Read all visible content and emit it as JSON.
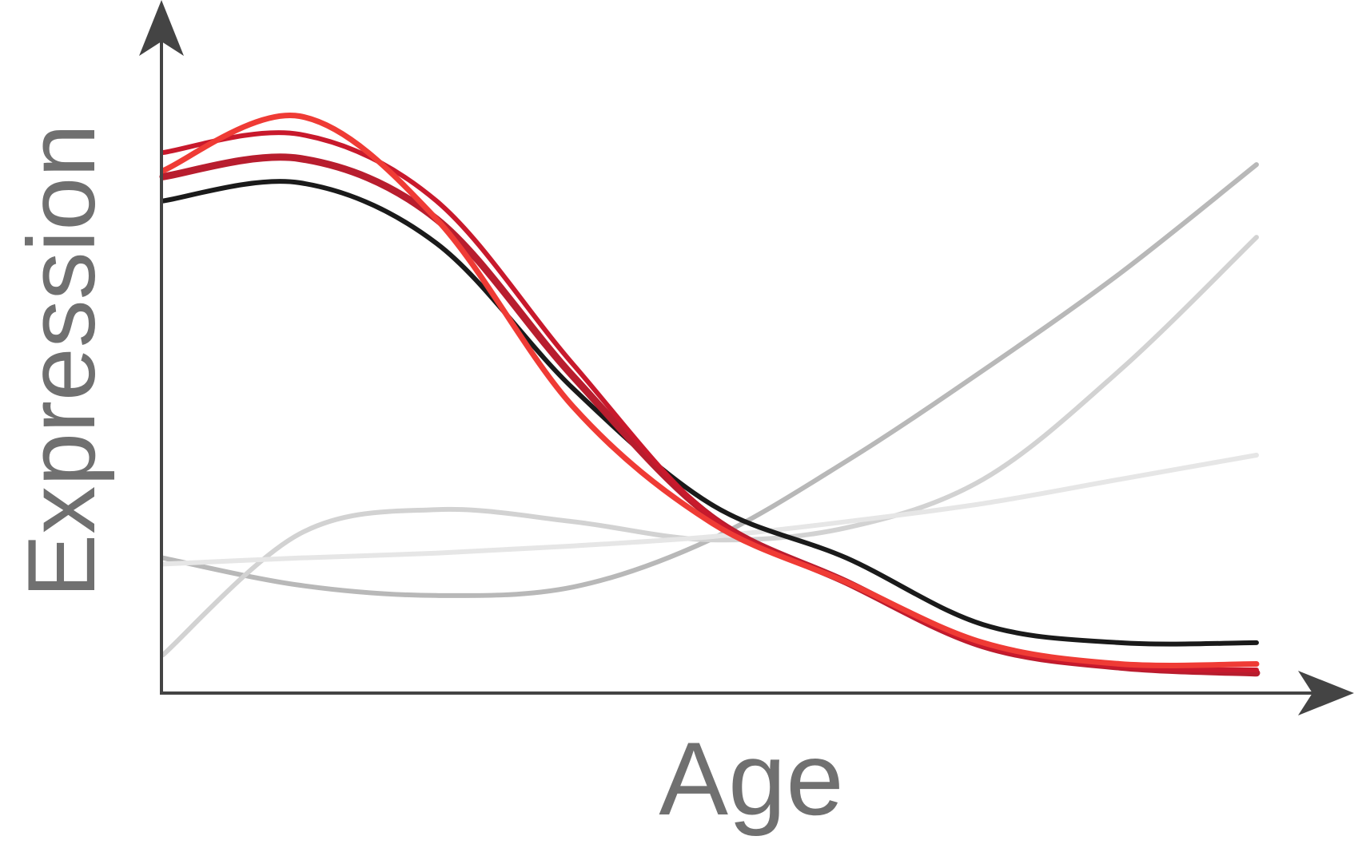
{
  "chart_data": {
    "type": "line",
    "title": "",
    "xlabel": "Age",
    "ylabel": "Expression",
    "xlim": [
      0,
      100
    ],
    "ylim": [
      0,
      100
    ],
    "grid": false,
    "legend": "none",
    "series": [
      {
        "color": "#b8b8b8",
        "x": [
          0,
          12.5,
          25,
          37.5,
          50,
          62.5,
          75,
          87.5,
          100
        ],
        "values": [
          21,
          16.5,
          14.8,
          16.2,
          24,
          37,
          52,
          68,
          86
        ]
      },
      {
        "color": "#d2d2d2",
        "x": [
          0,
          12.5,
          25,
          37.5,
          50,
          62.5,
          75,
          87.5,
          100
        ],
        "values": [
          5,
          25,
          29,
          27,
          24,
          26,
          34,
          52,
          74
        ]
      },
      {
        "color": "#e6e6e6",
        "x": [
          0,
          12.5,
          25,
          37.5,
          50,
          62.5,
          75,
          87.5,
          100
        ],
        "values": [
          20,
          21,
          21.8,
          23,
          24.5,
          27,
          30,
          34,
          38
        ]
      },
      {
        "color": "#1a1a1a",
        "x": [
          0,
          12.5,
          25,
          37.5,
          50,
          62.5,
          75,
          87.5,
          100
        ],
        "values": [
          80,
          83,
          73,
          49,
          30,
          21,
          10,
          7,
          7
        ]
      },
      {
        "color": "#b81d2e",
        "x": [
          0,
          12.5,
          25,
          37.5,
          50,
          62.5,
          75,
          87.5,
          100
        ],
        "values": [
          84,
          87,
          77,
          51,
          28,
          17,
          6.5,
          3,
          2
        ]
      },
      {
        "color": "#c8192c",
        "x": [
          0,
          12.5,
          25,
          37.5,
          50,
          62.5,
          75,
          87.5,
          100
        ],
        "values": [
          88,
          91,
          80,
          53,
          28,
          17,
          6.5,
          3,
          2.5
        ]
      },
      {
        "color": "#ef3b35",
        "x": [
          0,
          12.5,
          25,
          37.5,
          50,
          62.5,
          75,
          87.5,
          100
        ],
        "values": [
          85,
          94,
          77,
          46,
          27,
          17,
          7,
          3.5,
          3.5
        ]
      }
    ]
  }
}
